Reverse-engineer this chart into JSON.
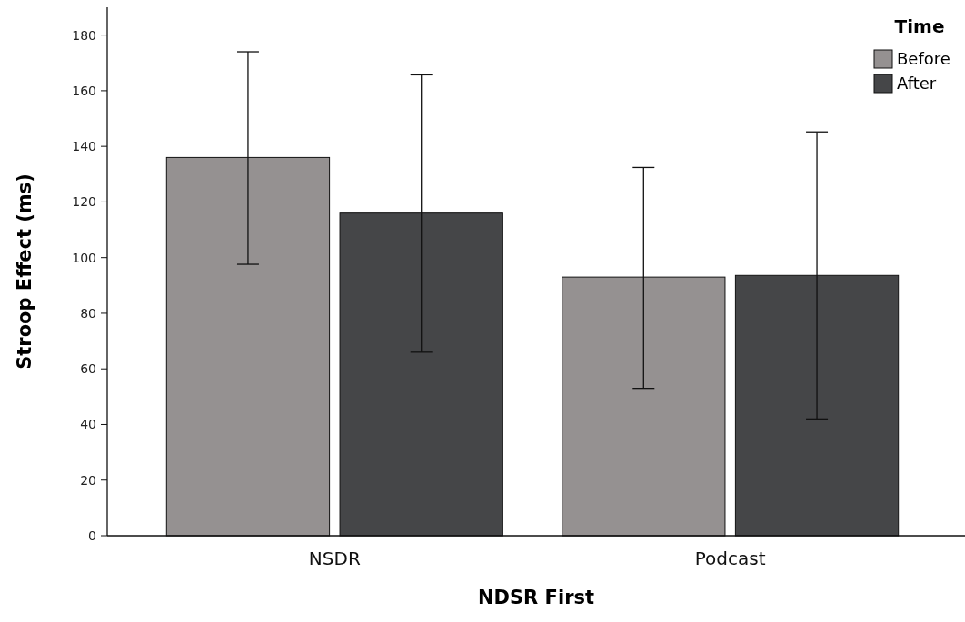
{
  "chart_data": {
    "type": "bar",
    "xlabel": "NDSR First",
    "ylabel": "Stroop Effect (ms)",
    "legend_title": "Time",
    "legend": "top right",
    "categories": [
      "NSDR",
      "Podcast"
    ],
    "series": [
      {
        "name": "Before",
        "color": "#959191",
        "values": [
          136,
          93
        ],
        "errors": [
          [
            97.6,
            174
          ],
          [
            53,
            132.4
          ]
        ]
      },
      {
        "name": "After",
        "color": "#454648",
        "values": [
          116,
          93.6
        ],
        "errors": [
          [
            66,
            165.7
          ],
          [
            42,
            145.2
          ]
        ]
      }
    ],
    "ylim": [
      0,
      190
    ],
    "yticks": [
      0,
      20,
      40,
      60,
      80,
      100,
      120,
      140,
      160,
      180
    ],
    "grid": false
  }
}
